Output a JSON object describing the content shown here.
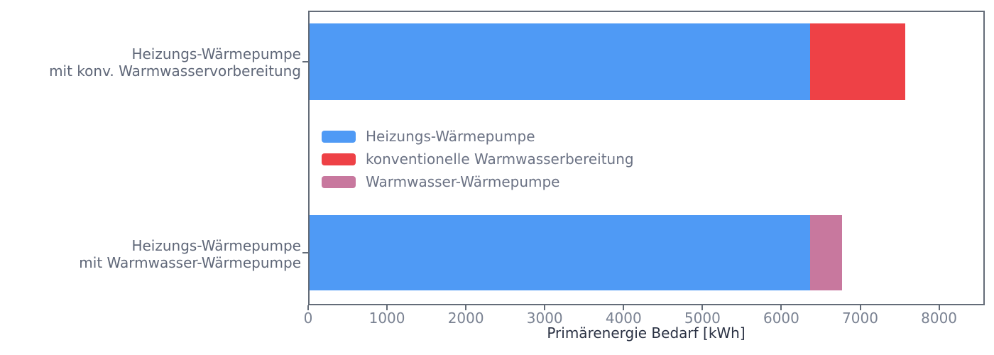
{
  "chart_data": {
    "type": "bar",
    "orientation": "horizontal",
    "stacked": true,
    "title": "",
    "xlabel": "Primärenergie Bedarf [kWh]",
    "ylabel": "",
    "categories": [
      "Heizungs-Wärmepumpe\nmit konv. Warmwasservorbereitung",
      "Heizungs-Wärmepumpe\nmit Warmwasser-Wärmepumpe"
    ],
    "series": [
      {
        "name": "Heizungs-Wärmepumpe",
        "color": "#4f9af5",
        "values": [
          6350,
          6350
        ]
      },
      {
        "name": "konventionelle Warmwasserbereitung",
        "color": "#ee4146",
        "values": [
          1200,
          0
        ]
      },
      {
        "name": "Warmwasser-Wärmepumpe",
        "color": "#c8789e",
        "values": [
          0,
          400
        ]
      }
    ],
    "totals": [
      7550,
      6750
    ],
    "xticks": [
      0,
      1000,
      2000,
      3000,
      4000,
      5000,
      6000,
      7000,
      8000
    ],
    "xlim": [
      0,
      8580
    ],
    "grid": false,
    "legend": {
      "position": "upper-left-inside",
      "frame": false,
      "entries": [
        "Heizungs-Wärmepumpe",
        "konventionelle Warmwasserbereitung",
        "Warmwasser-Wärmepumpe"
      ]
    },
    "colors": {
      "background": "#ffffff",
      "spine": "#646c78",
      "tick_label": "#7a8292",
      "category_label": "#5f6778",
      "legend_label": "#6b7284",
      "axis_title": "#2a3143"
    }
  }
}
